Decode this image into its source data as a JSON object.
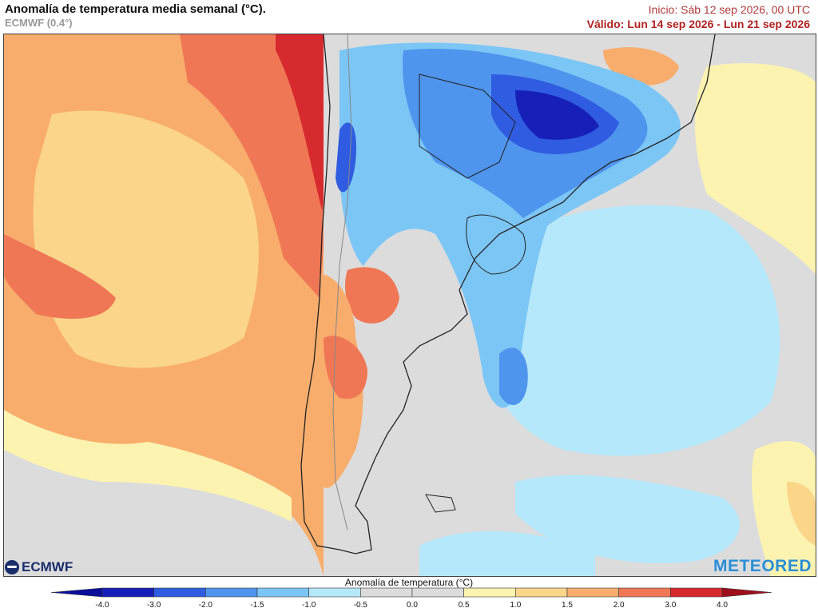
{
  "header": {
    "title": "Anomalía de temperatura media semanal (°C).",
    "model": "ECMWF (0.4°)",
    "init": "Inicio: Sáb 12 sep 2026, 00 UTC",
    "valid": "Válido: Lun 14 sep 2026 - Lun 21 sep 2026"
  },
  "logos": {
    "left": "ECMWF",
    "right": "METEORED"
  },
  "colorbar": {
    "title": "Anomalía de temperatura (°C)",
    "ticks": [
      "-4.0",
      "-3.0",
      "-2.0",
      "-1.5",
      "-1.0",
      "-0.5",
      "0.0",
      "0.5",
      "1.0",
      "1.5",
      "2.0",
      "3.0",
      "4.0"
    ],
    "colors": [
      "#1620b8",
      "#2f5ce0",
      "#4f95ee",
      "#7cc6f6",
      "#b6e8fb",
      "#dcdcdc",
      "#dcdcdc",
      "#fdf3b0",
      "#fbd589",
      "#f8ad6c",
      "#f07755",
      "#d72a2f"
    ],
    "under_color": "#0b0e99",
    "over_color": "#9e0f1c"
  }
}
